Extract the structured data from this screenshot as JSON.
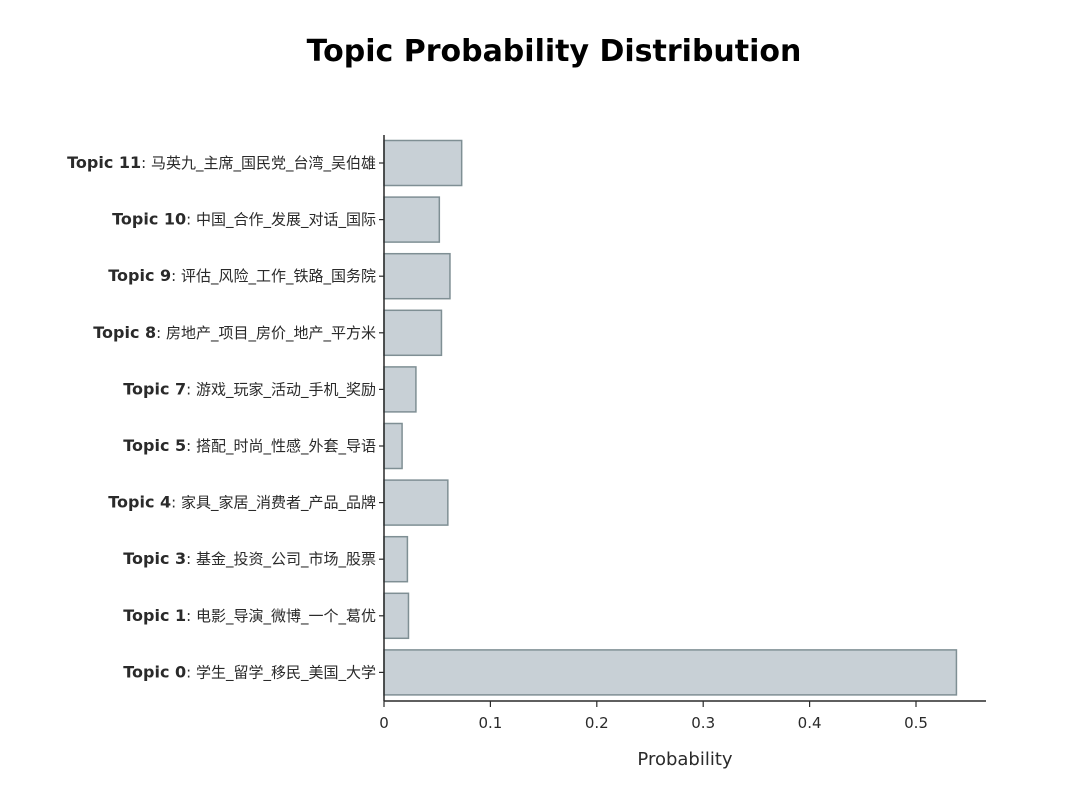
{
  "chart_data": {
    "type": "bar",
    "orientation": "horizontal",
    "title": "Topic Probability Distribution",
    "xlabel": "Probability",
    "ylabel": "",
    "xlim": [
      0,
      0.56
    ],
    "x_ticks": [
      "0",
      "0.1",
      "0.2",
      "0.3",
      "0.4",
      "0.5"
    ],
    "x_tick_values": [
      0,
      0.1,
      0.2,
      0.3,
      0.4,
      0.5
    ],
    "grid": false,
    "categories": [
      {
        "topic": "Topic 11",
        "words": "马英九_主席_国民党_台湾_吴伯雄"
      },
      {
        "topic": "Topic 10",
        "words": "中国_合作_发展_对话_国际"
      },
      {
        "topic": "Topic 9",
        "words": "评估_风险_工作_铁路_国务院"
      },
      {
        "topic": "Topic 8",
        "words": "房地产_项目_房价_地产_平方米"
      },
      {
        "topic": "Topic 7",
        "words": "游戏_玩家_活动_手机_奖励"
      },
      {
        "topic": "Topic 5",
        "words": "搭配_时尚_性感_外套_导语"
      },
      {
        "topic": "Topic 4",
        "words": "家具_家居_消费者_产品_品牌"
      },
      {
        "topic": "Topic 3",
        "words": "基金_投资_公司_市场_股票"
      },
      {
        "topic": "Topic 1",
        "words": "电影_导演_微博_一个_葛优"
      },
      {
        "topic": "Topic 0",
        "words": "学生_留学_移民_美国_大学"
      }
    ],
    "values": [
      0.073,
      0.052,
      0.062,
      0.054,
      0.03,
      0.017,
      0.06,
      0.022,
      0.023,
      0.538
    ],
    "colors": {
      "bar_fill": "#c8d0d6",
      "bar_stroke": "#7f8f94"
    }
  }
}
